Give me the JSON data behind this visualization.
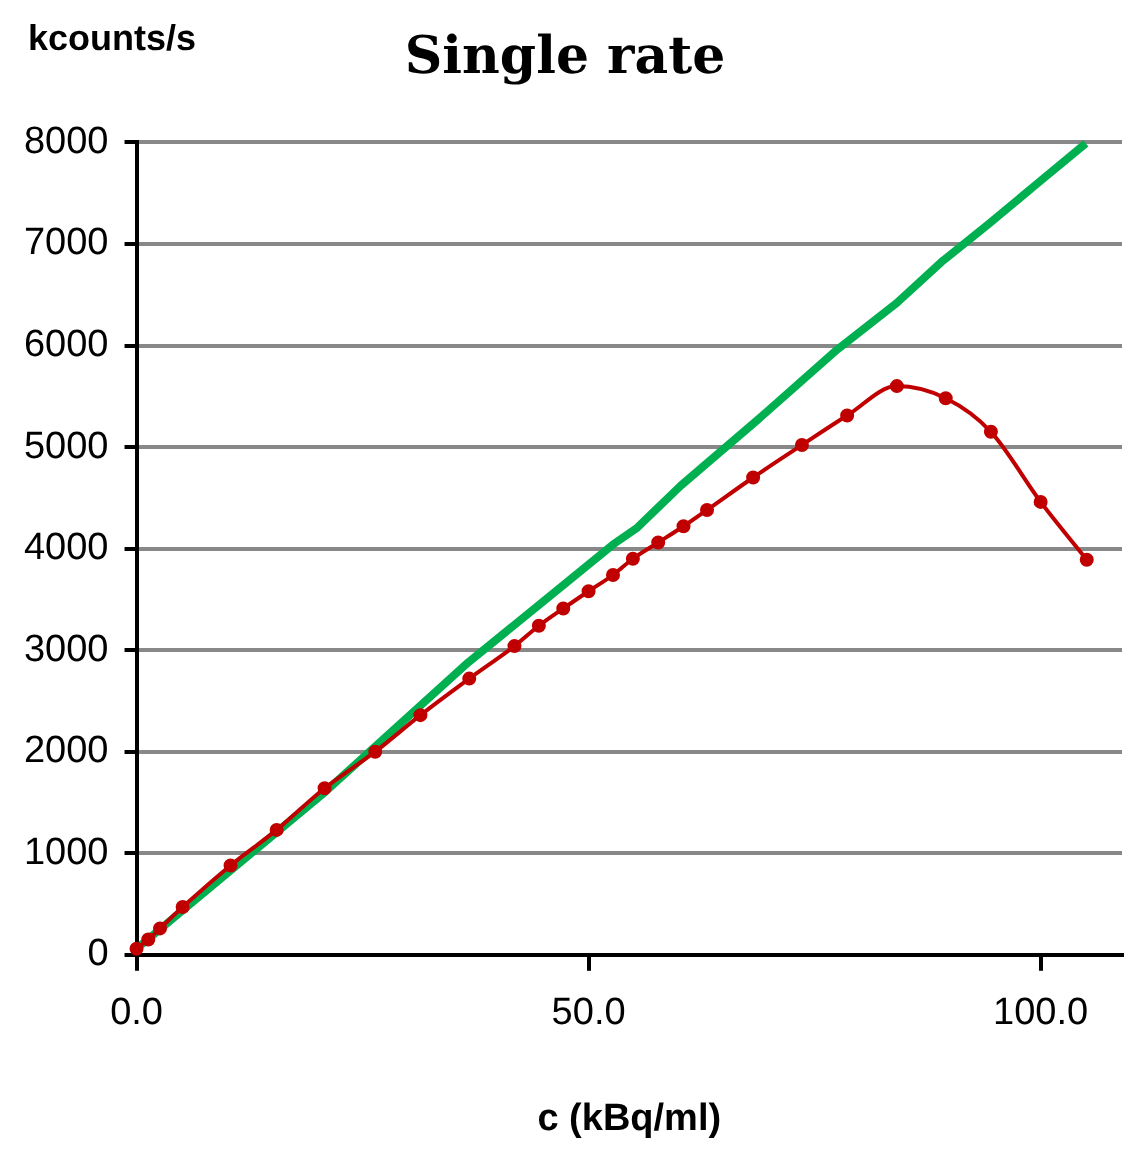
{
  "chart_data": {
    "type": "line",
    "title": "Single rate",
    "xlabel": "c (kBq/ml)",
    "ylabel": "kcounts/s",
    "xlim": [
      0,
      109
    ],
    "xticks": [
      {
        "value": 0,
        "label": "0.0"
      },
      {
        "value": 50,
        "label": "50.0"
      },
      {
        "value": 100,
        "label": "100.0"
      }
    ],
    "ylim": [
      0,
      8000
    ],
    "yticks": [
      0,
      1000,
      2000,
      3000,
      4000,
      5000,
      6000,
      7000,
      8000
    ],
    "grid": "y",
    "legend": false,
    "series": [
      {
        "color": "#00b050",
        "marker": "none",
        "x": [
          0,
          20.8,
          36.7,
          45,
          52.7,
          55.3,
          60.2,
          68.6,
          77.5,
          84.1,
          89,
          94.3,
          99.7,
          105
        ],
        "values": [
          60,
          1600,
          2880,
          3480,
          4040,
          4200,
          4620,
          5260,
          5960,
          6420,
          6820,
          7200,
          7600,
          7990
        ]
      },
      {
        "color": "#c00000",
        "marker": "circle",
        "x": [
          0,
          1.3,
          2.6,
          5.1,
          10.4,
          15.5,
          20.8,
          26.4,
          31.4,
          36.8,
          41.8,
          44.5,
          47.2,
          50,
          52.7,
          54.9,
          57.7,
          60.5,
          63.1,
          68.2,
          73.6,
          78.6,
          84.1,
          89.5,
          94.5,
          100,
          105.1
        ],
        "values": [
          60,
          150,
          260,
          470,
          880,
          1230,
          1640,
          2000,
          2360,
          2720,
          3040,
          3240,
          3410,
          3580,
          3740,
          3900,
          4060,
          4220,
          4380,
          4700,
          5020,
          5310,
          5600,
          5480,
          5150,
          4460,
          3890
        ]
      }
    ]
  }
}
